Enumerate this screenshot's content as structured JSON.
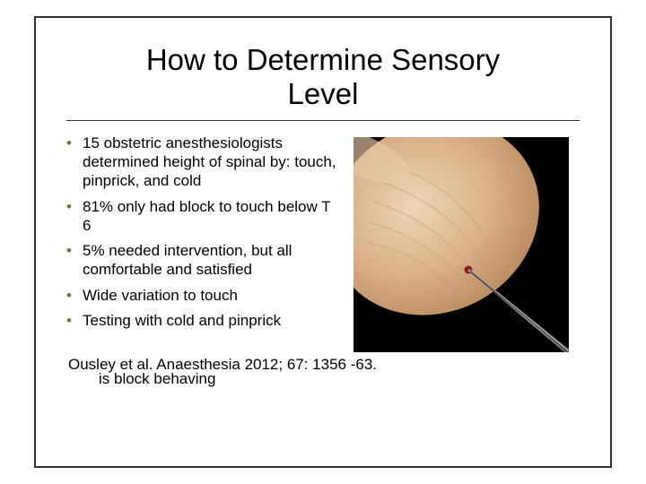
{
  "slide": {
    "title": "How to Determine Sensory\nLevel",
    "bullet_color": "#6d7a2a",
    "border_color": "#333333",
    "bullets": [
      "15 obstetric anesthesiologists determined height of spinal by: touch, pinprick, and cold",
      "81% only had block to touch below T 6",
      "5% needed intervention, but all comfortable and satisfied",
      "Wide variation to touch",
      "Testing with cold and pinprick"
    ],
    "citation": "Ousley et al. Anaesthesia 2012; 67: 1356 -63.",
    "cutoff_text": "is block behaving",
    "image": {
      "alt": "Close-up of a fingertip being pricked by a needle",
      "bg_color": "#000000",
      "skin_base": "#d9b088",
      "skin_shadow": "#b8875c",
      "skin_highlight": "#f0d5b6",
      "needle_color": "#b3b3b3",
      "needle_dark": "#4a4a4a",
      "blood_color": "#8c1c1c"
    }
  }
}
